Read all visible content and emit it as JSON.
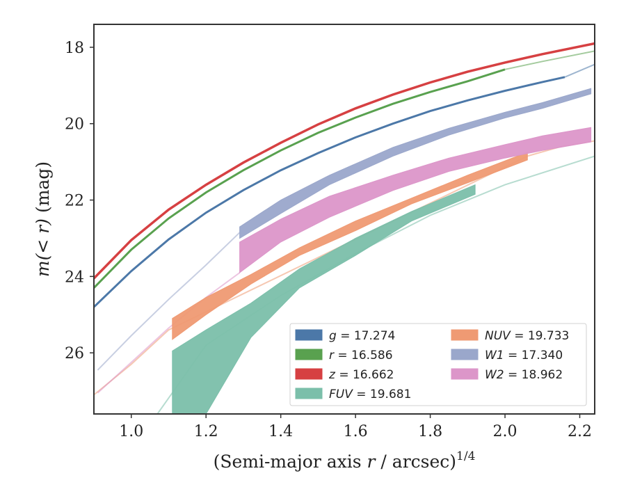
{
  "chart_data": {
    "type": "line",
    "xlabel_main": "(Semi-major axis ",
    "xlabel_var": "r",
    "xlabel_unit": " / arcsec)",
    "xlabel_exp": "1/4",
    "ylabel_pre": "m",
    "ylabel_var": "(< r)",
    "ylabel_unit": " (mag)",
    "xlim": [
      0.9,
      2.24
    ],
    "ylim": [
      27.6,
      17.4
    ],
    "y_inverted": true,
    "x_ticks": [
      1.0,
      1.2,
      1.4,
      1.6,
      1.8,
      2.0,
      2.2
    ],
    "x_tick_labels": [
      "1.0",
      "1.2",
      "1.4",
      "1.6",
      "1.8",
      "2.0",
      "2.2"
    ],
    "y_ticks": [
      18,
      20,
      22,
      24,
      26
    ],
    "y_tick_labels": [
      "18",
      "20",
      "22",
      "24",
      "26"
    ],
    "grid": false,
    "legend_position": "lower-right",
    "legend_columns": 2,
    "series": [
      {
        "name": "g = 17.274",
        "legend_var": "g",
        "legend_value": "= 17.274",
        "color": "#4c78a8",
        "width": 3,
        "x": [
          0.9,
          1.0,
          1.1,
          1.2,
          1.3,
          1.4,
          1.5,
          1.6,
          1.7,
          1.8,
          1.9,
          2.0,
          2.1,
          2.16
        ],
        "y": [
          24.8,
          23.86,
          23.03,
          22.33,
          21.74,
          21.22,
          20.77,
          20.36,
          20.0,
          19.67,
          19.39,
          19.14,
          18.91,
          18.78
        ],
        "faint_x": [
          2.16,
          2.24
        ],
        "faint_y": [
          18.78,
          18.45
        ]
      },
      {
        "name": "r = 16.586",
        "legend_var": "r",
        "legend_value": "= 16.586",
        "color": "#59a14f",
        "width": 3,
        "x": [
          0.9,
          1.0,
          1.1,
          1.2,
          1.3,
          1.4,
          1.5,
          1.6,
          1.7,
          1.8,
          1.9,
          2.0
        ],
        "y": [
          24.3,
          23.3,
          22.48,
          21.8,
          21.22,
          20.7,
          20.24,
          19.84,
          19.48,
          19.17,
          18.89,
          18.58
        ],
        "faint_x": [
          2.0,
          2.1,
          2.24
        ],
        "faint_y": [
          18.58,
          18.37,
          18.1
        ]
      },
      {
        "name": "z = 16.662",
        "legend_var": "z",
        "legend_value": "= 16.662",
        "color": "#d64042",
        "width": 3.5,
        "x": [
          0.9,
          1.0,
          1.1,
          1.2,
          1.3,
          1.4,
          1.5,
          1.6,
          1.7,
          1.8,
          1.9,
          2.0,
          2.1,
          2.24
        ],
        "y": [
          24.05,
          23.05,
          22.25,
          21.6,
          21.02,
          20.5,
          20.02,
          19.6,
          19.24,
          18.92,
          18.64,
          18.4,
          18.18,
          17.9
        ]
      },
      {
        "name": "FUV = 19.681",
        "legend_var": "FUV",
        "legend_value": "= 19.681",
        "color": "#7bbfaa",
        "band_x": [
          1.11,
          1.2,
          1.32,
          1.45,
          1.6,
          1.75,
          1.92
        ],
        "band_upper": [
          25.95,
          25.4,
          24.7,
          23.8,
          23.0,
          22.3,
          21.6
        ],
        "band_lower": [
          27.6,
          27.6,
          25.6,
          24.3,
          23.45,
          22.55,
          21.85
        ],
        "band_cut_x": 1.17,
        "faint_x": [
          1.07,
          1.2,
          1.4,
          1.6,
          1.8,
          2.0,
          2.24
        ],
        "faint_y": [
          27.6,
          25.8,
          24.5,
          23.4,
          22.4,
          21.6,
          20.85
        ]
      },
      {
        "name": "NUV = 19.733",
        "legend_var": "NUV",
        "legend_value": "= 19.733",
        "color": "#ef9a73",
        "band_x": [
          1.11,
          1.2,
          1.32,
          1.45,
          1.6,
          1.75,
          1.9,
          2.06
        ],
        "band_upper": [
          25.1,
          24.55,
          23.95,
          23.25,
          22.55,
          21.95,
          21.35,
          20.75
        ],
        "band_lower": [
          25.65,
          25.0,
          24.2,
          23.45,
          22.8,
          22.1,
          21.55,
          20.95
        ],
        "faint_x": [
          0.9,
          1.0,
          1.1,
          2.06,
          2.15,
          2.24
        ],
        "faint_y": [
          27.1,
          26.3,
          25.4,
          20.85,
          20.6,
          20.45
        ]
      },
      {
        "name": "W1 = 17.340",
        "legend_var": "W1",
        "legend_value": "= 17.340",
        "color": "#9aa7cb",
        "band_x": [
          1.29,
          1.4,
          1.53,
          1.7,
          1.85,
          2.0,
          2.1,
          2.23
        ],
        "band_upper": [
          22.7,
          22.0,
          21.35,
          20.62,
          20.12,
          19.7,
          19.45,
          19.08
        ],
        "band_lower": [
          23.0,
          22.35,
          21.6,
          20.85,
          20.3,
          19.85,
          19.6,
          19.22
        ],
        "faint_x": [
          0.91,
          1.0,
          1.1,
          1.2,
          1.29
        ],
        "faint_y": [
          26.45,
          25.55,
          24.6,
          23.7,
          22.85
        ]
      },
      {
        "name": "W2 = 18.962",
        "legend_var": "W2",
        "legend_value": "= 18.962",
        "color": "#dc96c9",
        "band_x": [
          1.29,
          1.4,
          1.53,
          1.7,
          1.85,
          2.0,
          2.1,
          2.23
        ],
        "band_upper": [
          23.1,
          22.5,
          21.9,
          21.35,
          20.9,
          20.55,
          20.32,
          20.1
        ],
        "band_lower": [
          23.9,
          23.1,
          22.45,
          21.75,
          21.25,
          20.9,
          20.7,
          20.48
        ],
        "band_left_edge": [
          23.1,
          24.0
        ],
        "faint_x": [
          0.91,
          1.0,
          1.1,
          1.2,
          1.29
        ],
        "faint_y": [
          27.05,
          26.25,
          25.35,
          24.55,
          23.9
        ]
      }
    ]
  }
}
